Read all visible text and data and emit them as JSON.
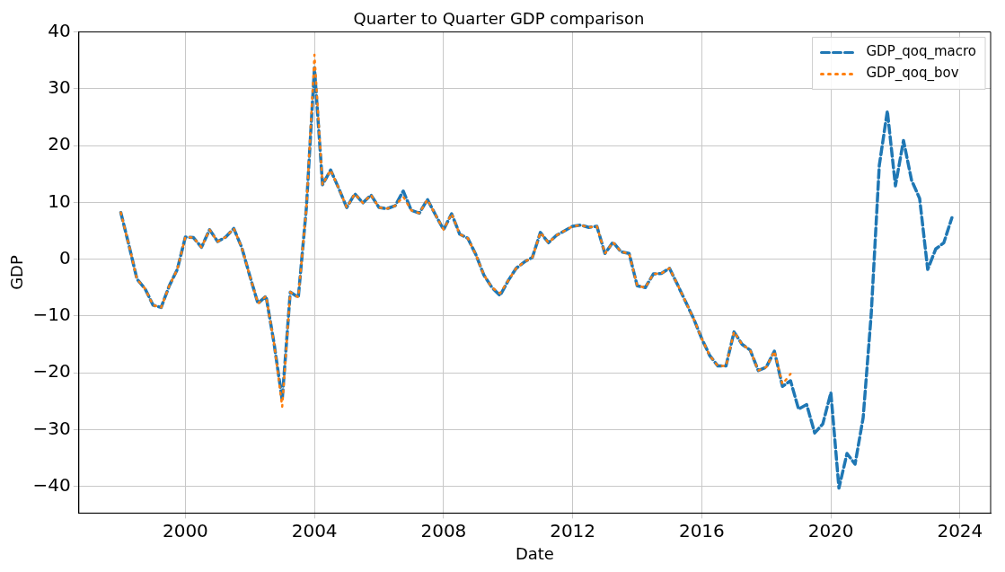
{
  "chart_data": {
    "type": "line",
    "title": "Quarter to Quarter GDP comparison",
    "xlabel": "Date",
    "ylabel": "GDP",
    "xlim": [
      1996.7,
      2024.95
    ],
    "xticks": [
      2000,
      2004,
      2008,
      2012,
      2016,
      2020,
      2024
    ],
    "ylim": [
      -44.7,
      40
    ],
    "yticks": [
      -40,
      -30,
      -20,
      -10,
      0,
      10,
      20,
      30,
      40
    ],
    "grid": true,
    "legend": "top right",
    "marker": "none",
    "series": [
      {
        "name": "GDP_qoq_macro",
        "color": "#1f77b4",
        "line_style": "dashed",
        "x": [
          1998.0,
          1998.25,
          1998.5,
          1998.75,
          1999.0,
          1999.25,
          1999.5,
          1999.75,
          2000.0,
          2000.25,
          2000.5,
          2000.75,
          2001.0,
          2001.25,
          2001.5,
          2001.75,
          2002.0,
          2002.25,
          2002.5,
          2002.75,
          2003.0,
          2003.25,
          2003.5,
          2003.75,
          2004.0,
          2004.25,
          2004.5,
          2004.75,
          2005.0,
          2005.25,
          2005.5,
          2005.75,
          2006.0,
          2006.25,
          2006.5,
          2006.75,
          2007.0,
          2007.25,
          2007.5,
          2007.75,
          2008.0,
          2008.25,
          2008.5,
          2008.75,
          2009.0,
          2009.25,
          2009.5,
          2009.75,
          2010.0,
          2010.25,
          2010.5,
          2010.75,
          2011.0,
          2011.25,
          2011.5,
          2011.75,
          2012.0,
          2012.25,
          2012.5,
          2012.75,
          2013.0,
          2013.25,
          2013.5,
          2013.75,
          2014.0,
          2014.25,
          2014.5,
          2014.75,
          2015.0,
          2015.25,
          2015.5,
          2015.75,
          2016.0,
          2016.25,
          2016.5,
          2016.75,
          2017.0,
          2017.25,
          2017.5,
          2017.75,
          2018.0,
          2018.25,
          2018.5,
          2018.75,
          2019.0,
          2019.25,
          2019.5,
          2019.75,
          2020.0,
          2020.25,
          2020.5,
          2020.75,
          2021.0,
          2021.25,
          2021.5,
          2021.75,
          2022.0,
          2022.25,
          2022.5,
          2022.75,
          2023.0,
          2023.25,
          2023.5,
          2023.75
        ],
        "values": [
          8.2,
          2.5,
          -3.5,
          -5.2,
          -8.1,
          -8.5,
          -4.7,
          -1.8,
          3.9,
          3.8,
          2.1,
          5.2,
          3.1,
          3.9,
          5.4,
          2.0,
          -3.0,
          -7.8,
          -6.5,
          -14.9,
          -24.8,
          -5.8,
          -6.7,
          9.1,
          33.7,
          13.1,
          15.7,
          12.5,
          9.1,
          11.5,
          9.9,
          11.3,
          9.1,
          8.9,
          9.4,
          12.0,
          8.6,
          8.1,
          10.5,
          7.8,
          5.2,
          8.0,
          4.4,
          3.7,
          0.8,
          -2.8,
          -5.0,
          -6.4,
          -3.8,
          -1.6,
          -0.5,
          0.3,
          4.7,
          2.9,
          4.2,
          5.0,
          5.8,
          6.0,
          5.6,
          5.8,
          1.0,
          3.0,
          1.3,
          1.0,
          -4.7,
          -5.0,
          -2.6,
          -2.5,
          -1.6,
          -4.5,
          -7.5,
          -10.5,
          -14.0,
          -17.0,
          -18.8,
          -18.8,
          -12.8,
          -15.0,
          -16.0,
          -19.6,
          -19.0,
          -16.2,
          -22.4,
          -21.4,
          -26.4,
          -25.6,
          -30.6,
          -29.0,
          -23.5,
          -40.3,
          -34.2,
          -36.1,
          -27.9,
          -9.7,
          16.5,
          26.1,
          12.9,
          20.9,
          13.9,
          10.7,
          -1.8,
          1.8,
          2.9,
          7.3
        ]
      },
      {
        "name": "GDP_qoq_bov",
        "color": "#ff7f0e",
        "line_style": "dotted",
        "x": [
          1998.0,
          1998.25,
          1998.5,
          1998.75,
          1999.0,
          1999.25,
          1999.5,
          1999.75,
          2000.0,
          2000.25,
          2000.5,
          2000.75,
          2001.0,
          2001.25,
          2001.5,
          2001.75,
          2002.0,
          2002.25,
          2002.5,
          2002.75,
          2003.0,
          2003.25,
          2003.5,
          2003.75,
          2004.0,
          2004.25,
          2004.5,
          2004.75,
          2005.0,
          2005.25,
          2005.5,
          2005.75,
          2006.0,
          2006.25,
          2006.5,
          2006.75,
          2007.0,
          2007.25,
          2007.5,
          2007.75,
          2008.0,
          2008.25,
          2008.5,
          2008.75,
          2009.0,
          2009.25,
          2009.5,
          2009.75,
          2010.0,
          2010.25,
          2010.5,
          2010.75,
          2011.0,
          2011.25,
          2011.5,
          2011.75,
          2012.0,
          2012.25,
          2012.5,
          2012.75,
          2013.0,
          2013.25,
          2013.5,
          2013.75,
          2014.0,
          2014.25,
          2014.5,
          2014.75,
          2015.0,
          2015.25,
          2015.5,
          2015.75,
          2016.0,
          2016.25,
          2016.5,
          2016.75,
          2017.0,
          2017.25,
          2017.5,
          2017.75,
          2018.0,
          2018.25,
          2018.5,
          2018.75
        ],
        "values": [
          8.2,
          2.5,
          -3.5,
          -5.2,
          -8.1,
          -8.5,
          -4.7,
          -1.8,
          3.9,
          3.8,
          2.1,
          5.2,
          3.1,
          3.9,
          5.4,
          2.0,
          -3.0,
          -7.8,
          -6.5,
          -14.9,
          -26.0,
          -5.8,
          -6.7,
          9.1,
          36.0,
          13.1,
          15.7,
          12.5,
          9.1,
          11.5,
          9.9,
          11.3,
          9.1,
          8.9,
          9.4,
          11.0,
          8.6,
          8.1,
          10.5,
          7.8,
          5.2,
          8.0,
          4.4,
          3.7,
          0.8,
          -2.8,
          -5.0,
          -6.0,
          -3.8,
          -1.6,
          -0.5,
          0.3,
          4.7,
          2.9,
          4.2,
          5.0,
          5.8,
          6.0,
          5.6,
          5.8,
          1.0,
          3.0,
          1.3,
          1.0,
          -4.7,
          -5.0,
          -2.6,
          -2.5,
          -1.6,
          -4.5,
          -7.5,
          -10.5,
          -14.0,
          -17.0,
          -18.8,
          -18.8,
          -12.8,
          -15.0,
          -16.0,
          -19.6,
          -19.0,
          -16.2,
          -22.0,
          -20.2
        ]
      }
    ]
  }
}
